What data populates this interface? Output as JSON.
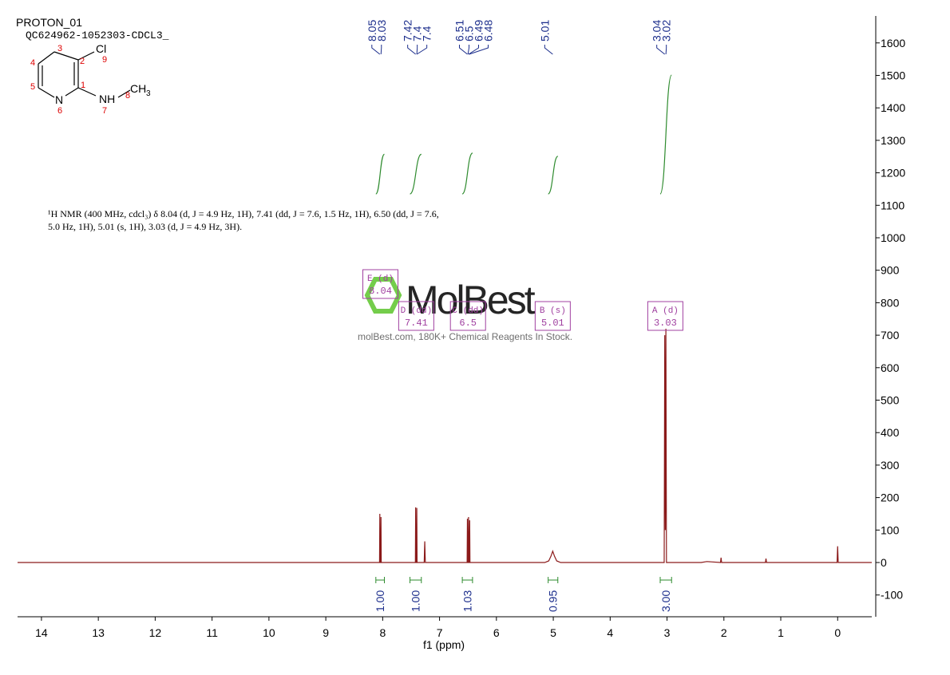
{
  "chart_data": {
    "type": "line",
    "title": "PROTON_01",
    "subtitle": "QC624962-1052303-CDCL3_",
    "xlabel": "f1 (ppm)",
    "xlim": [
      14.42,
      -0.6
    ],
    "ylim": [
      -167,
      1683
    ],
    "xticks": [
      14,
      13,
      12,
      11,
      10,
      9,
      8,
      7,
      6,
      5,
      4,
      3,
      2,
      1,
      0
    ],
    "yticks": [
      -100,
      0,
      100,
      200,
      300,
      400,
      500,
      600,
      700,
      800,
      900,
      1000,
      1100,
      1200,
      1300,
      1400,
      1500,
      1600
    ],
    "series": [
      {
        "color": "#8b1a1a",
        "x": [
          14.42,
          8.1,
          8.055,
          8.05,
          8.045,
          8.035,
          8.03,
          8.025,
          7.6,
          7.425,
          7.42,
          7.415,
          7.405,
          7.4,
          7.395,
          7.27,
          7.26,
          7.25,
          6.6,
          6.515,
          6.51,
          6.505,
          6.495,
          6.49,
          6.485,
          6.475,
          6.47,
          6.465,
          5.15,
          5.08,
          5.04,
          5.01,
          4.98,
          4.94,
          4.87,
          3.2,
          3.05,
          3.04,
          3.03,
          3.02,
          3.01,
          2.9,
          2.4,
          2.3,
          2.06,
          2.05,
          2.04,
          1.27,
          1.26,
          1.25,
          0.01,
          0,
          -0.01,
          -0.6
        ],
        "values": [
          0,
          0,
          0,
          150,
          0,
          0,
          140,
          0,
          0,
          0,
          170,
          0,
          0,
          168,
          0,
          0,
          65,
          0,
          0,
          0,
          135,
          0,
          0,
          140,
          0,
          0,
          130,
          0,
          0,
          5,
          20,
          35,
          20,
          5,
          0,
          0,
          0,
          700,
          100,
          720,
          0,
          0,
          0,
          3,
          0,
          15,
          0,
          0,
          12,
          0,
          0,
          50,
          0,
          0
        ]
      }
    ],
    "peak_labels": [
      8.05,
      8.03,
      7.42,
      7.4,
      7.4,
      6.51,
      6.5,
      6.49,
      6.48,
      5.01,
      3.04,
      3.02
    ],
    "multiplets": [
      {
        "name": "E (d)",
        "shift": 8.04
      },
      {
        "name": "D (dd)",
        "shift": 7.41
      },
      {
        "name": "C (dd)",
        "shift": 6.5
      },
      {
        "name": "B (s)",
        "shift": 5.01
      },
      {
        "name": "A (d)",
        "shift": 3.03
      }
    ],
    "integrals": {
      "ranges": [
        [
          8.12,
          7.97
        ],
        [
          7.52,
          7.32
        ],
        [
          6.6,
          6.42
        ],
        [
          5.09,
          4.92
        ],
        [
          3.12,
          2.92
        ]
      ],
      "values": [
        1.0,
        1.0,
        1.03,
        0.95,
        3.0
      ],
      "value_labels": [
        "1.00",
        "1.00",
        "1.03",
        "0.95",
        "3.00"
      ],
      "color": "#2e8b2e"
    },
    "description": [
      "¹H NMR (400 MHz, cdcl₃) δ 8.04 (d, J = 4.9 Hz, 1H), 7.41 (dd, J = 7.6, 1.5 Hz, 1H), 6.50 (dd, J = 7.6,",
      "5.0 Hz, 1H), 5.01 (s, 1H), 3.03 (d, J = 4.9 Hz, 3H)."
    ],
    "structure": {
      "atoms": [
        "Cl",
        "N",
        "NH",
        "CH",
        "3"
      ],
      "numbers": [
        "1",
        "2",
        "3",
        "4",
        "5",
        "6",
        "7",
        "8",
        "9"
      ]
    },
    "watermark": {
      "logo": "MolBest",
      "text": "molBest.com, 180K+ Chemical Reagents In Stock."
    }
  }
}
